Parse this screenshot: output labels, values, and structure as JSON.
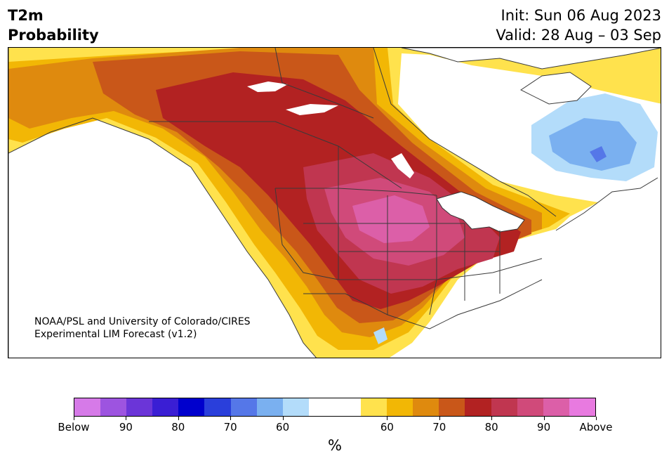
{
  "header": {
    "title_line1": "T2m",
    "title_line2": "Probability",
    "init_label": "Init: Sun 06 Aug 2023",
    "valid_label": "Valid: 28 Aug – 03 Sep"
  },
  "map": {
    "credit_line1": "NOAA/PSL and University of Colorado/CIRES",
    "credit_line2": "Experimental LIM Forecast (v1.2)"
  },
  "colorbar": {
    "unit": "%",
    "colors": [
      "#d67ae8",
      "#9d54e0",
      "#6b35d8",
      "#3a1ed4",
      "#0000cd",
      "#2a3fdb",
      "#5577e8",
      "#7ab0f0",
      "#b3dcfa",
      "#ffffff",
      "#ffffff",
      "#ffe24d",
      "#f2b705",
      "#df8a0e",
      "#c95719",
      "#b22222",
      "#c03650",
      "#d04a7a",
      "#dc5fa8",
      "#e87ae0"
    ],
    "tick_labels": [
      "Below",
      "90",
      "80",
      "70",
      "60",
      "60",
      "70",
      "80",
      "90",
      "Above"
    ]
  }
}
